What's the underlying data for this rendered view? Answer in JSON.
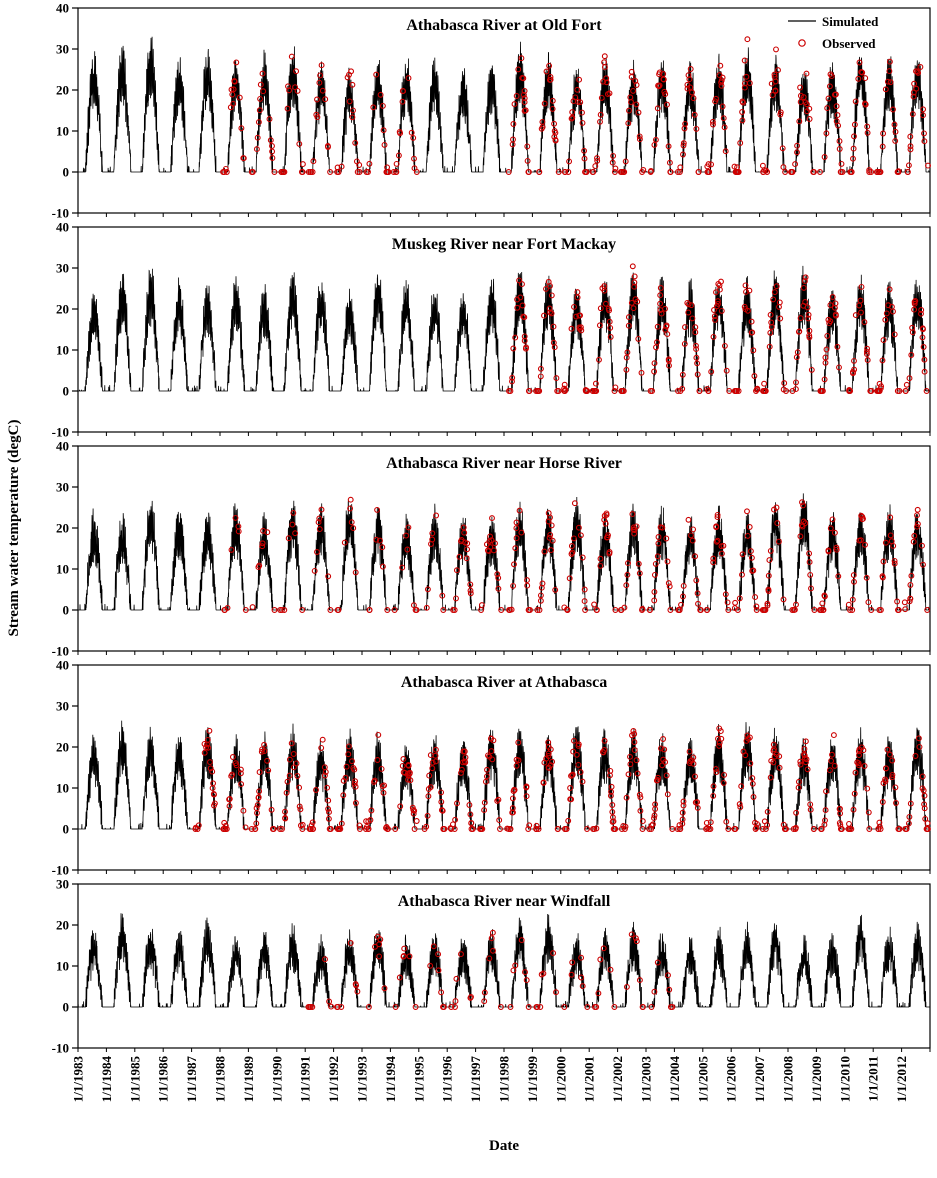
{
  "chart_data": {
    "type": "line",
    "xlabel": "Date",
    "ylabel": "Stream  water temperature (degC)",
    "x_tick_labels": [
      "1/1/1983",
      "1/1/1984",
      "1/1/1985",
      "1/1/1986",
      "1/1/1987",
      "1/1/1988",
      "1/1/1989",
      "1/1/1990",
      "1/1/1991",
      "1/1/1992",
      "1/1/1993",
      "1/1/1994",
      "1/1/1995",
      "1/1/1996",
      "1/1/1997",
      "1/1/1998",
      "1/1/1999",
      "1/1/2000",
      "1/1/2001",
      "1/1/2002",
      "1/1/2003",
      "1/1/2004",
      "1/1/2005",
      "1/1/2006",
      "1/1/2007",
      "1/1/2008",
      "1/1/2009",
      "1/1/2010",
      "1/1/2011",
      "1/1/2012"
    ],
    "legend": [
      {
        "label": "Simulated",
        "color": "#000000",
        "marker": "line"
      },
      {
        "label": "Observed",
        "color": "#CC0000",
        "marker": "circle"
      }
    ],
    "panels": [
      {
        "title": "Athabasca River at Old Fort",
        "ylim": [
          -10,
          40
        ],
        "yticks": [
          40,
          30,
          20,
          10,
          0,
          -10
        ],
        "simulated_annual_peaks": [
          27,
          29,
          31,
          26,
          28,
          26,
          27,
          29,
          25,
          23,
          26,
          27,
          26,
          24,
          26,
          29,
          27,
          24,
          26,
          25,
          26,
          25,
          27,
          29,
          27,
          24,
          25,
          29,
          27,
          28
        ],
        "observed_ranges": [
          {
            "from": 1988,
            "to": 1994,
            "points_per_year": 16
          },
          {
            "from": 1998,
            "to": 2012,
            "points_per_year": 20
          }
        ]
      },
      {
        "title": "Muskeg River near Fort Mackay",
        "ylim": [
          -10,
          40
        ],
        "yticks": [
          40,
          30,
          20,
          10,
          0,
          -10
        ],
        "simulated_annual_peaks": [
          23,
          27,
          29,
          25,
          24,
          26,
          24,
          27,
          26,
          23,
          29,
          25,
          24,
          23,
          26,
          28,
          27,
          25,
          27,
          28,
          26,
          25,
          27,
          25,
          28,
          29,
          24,
          26,
          25,
          27
        ],
        "observed_ranges": [
          {
            "from": 1998,
            "to": 2012,
            "points_per_year": 20
          }
        ]
      },
      {
        "title": "Athabasca River near Horse River",
        "ylim": [
          -10,
          40
        ],
        "yticks": [
          40,
          30,
          20,
          10,
          0,
          -10
        ],
        "simulated_annual_peaks": [
          22,
          21,
          26,
          23,
          22,
          24,
          21,
          25,
          24,
          26,
          23,
          21,
          23,
          22,
          21,
          24,
          23,
          25,
          22,
          24,
          23,
          22,
          23,
          21,
          26,
          27,
          22,
          23,
          24,
          23
        ],
        "observed_ranges": [
          {
            "from": 1988,
            "to": 1995,
            "points_per_year": 8
          },
          {
            "from": 1996,
            "to": 2012,
            "points_per_year": 16
          }
        ]
      },
      {
        "title": "Athabasca River at Athabasca",
        "ylim": [
          -10,
          40
        ],
        "yticks": [
          40,
          30,
          20,
          10,
          0,
          -10
        ],
        "simulated_annual_peaks": [
          21,
          24,
          22,
          21,
          23,
          20,
          21,
          23,
          20,
          22,
          21,
          19,
          21,
          20,
          22,
          23,
          21,
          24,
          22,
          23,
          21,
          20,
          23,
          24,
          22,
          20,
          21,
          22,
          21,
          24
        ],
        "observed_ranges": [
          {
            "from": 1987,
            "to": 2012,
            "points_per_year": 20
          }
        ]
      },
      {
        "title": "Athabasca River near Windfall",
        "ylim": [
          -10,
          30
        ],
        "yticks": [
          30,
          20,
          10,
          0,
          -10
        ],
        "simulated_annual_peaks": [
          17,
          21,
          18,
          17,
          19,
          16,
          17,
          18,
          15,
          17,
          19,
          15,
          16,
          15,
          17,
          20,
          21,
          16,
          17,
          18,
          16,
          15,
          17,
          18,
          19,
          15,
          16,
          21,
          17,
          19
        ],
        "observed_ranges": [
          {
            "from": 1991,
            "to": 2003,
            "points_per_year": 7
          }
        ]
      }
    ]
  }
}
